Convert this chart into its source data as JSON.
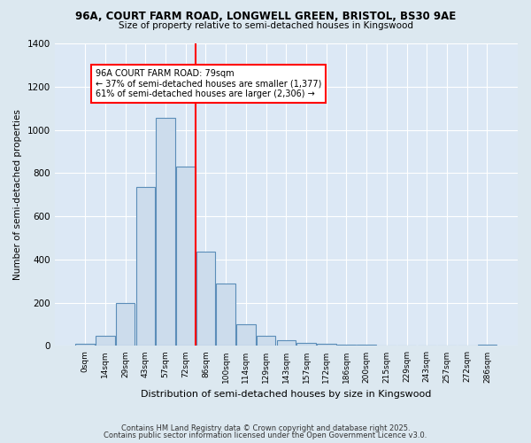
{
  "title1": "96A, COURT FARM ROAD, LONGWELL GREEN, BRISTOL, BS30 9AE",
  "title2": "Size of property relative to semi-detached houses in Kingswood",
  "xlabel": "Distribution of semi-detached houses by size in Kingswood",
  "ylabel": "Number of semi-detached properties",
  "bar_labels": [
    "0sqm",
    "14sqm",
    "29sqm",
    "43sqm",
    "57sqm",
    "72sqm",
    "86sqm",
    "100sqm",
    "114sqm",
    "129sqm",
    "143sqm",
    "157sqm",
    "172sqm",
    "186sqm",
    "200sqm",
    "215sqm",
    "229sqm",
    "243sqm",
    "257sqm",
    "272sqm",
    "286sqm"
  ],
  "bar_values": [
    10,
    45,
    200,
    735,
    1055,
    830,
    435,
    290,
    100,
    45,
    25,
    15,
    10,
    5,
    5,
    0,
    0,
    0,
    0,
    0,
    5
  ],
  "bar_color": "#ccdcec",
  "bar_edge_color": "#5b8db8",
  "vline_x": 4.5,
  "vline_color": "red",
  "annotation_text": "96A COURT FARM ROAD: 79sqm\n← 37% of semi-detached houses are smaller (1,377)\n61% of semi-detached houses are larger (2,306) →",
  "annotation_box_color": "white",
  "annotation_box_edge": "red",
  "ylim": [
    0,
    1400
  ],
  "yticks": [
    0,
    200,
    400,
    600,
    800,
    1000,
    1200,
    1400
  ],
  "footnote1": "Contains HM Land Registry data © Crown copyright and database right 2025.",
  "footnote2": "Contains public sector information licensed under the Open Government Licence v3.0.",
  "bg_color": "#dce8f0",
  "plot_bg_color": "#dce8f5"
}
